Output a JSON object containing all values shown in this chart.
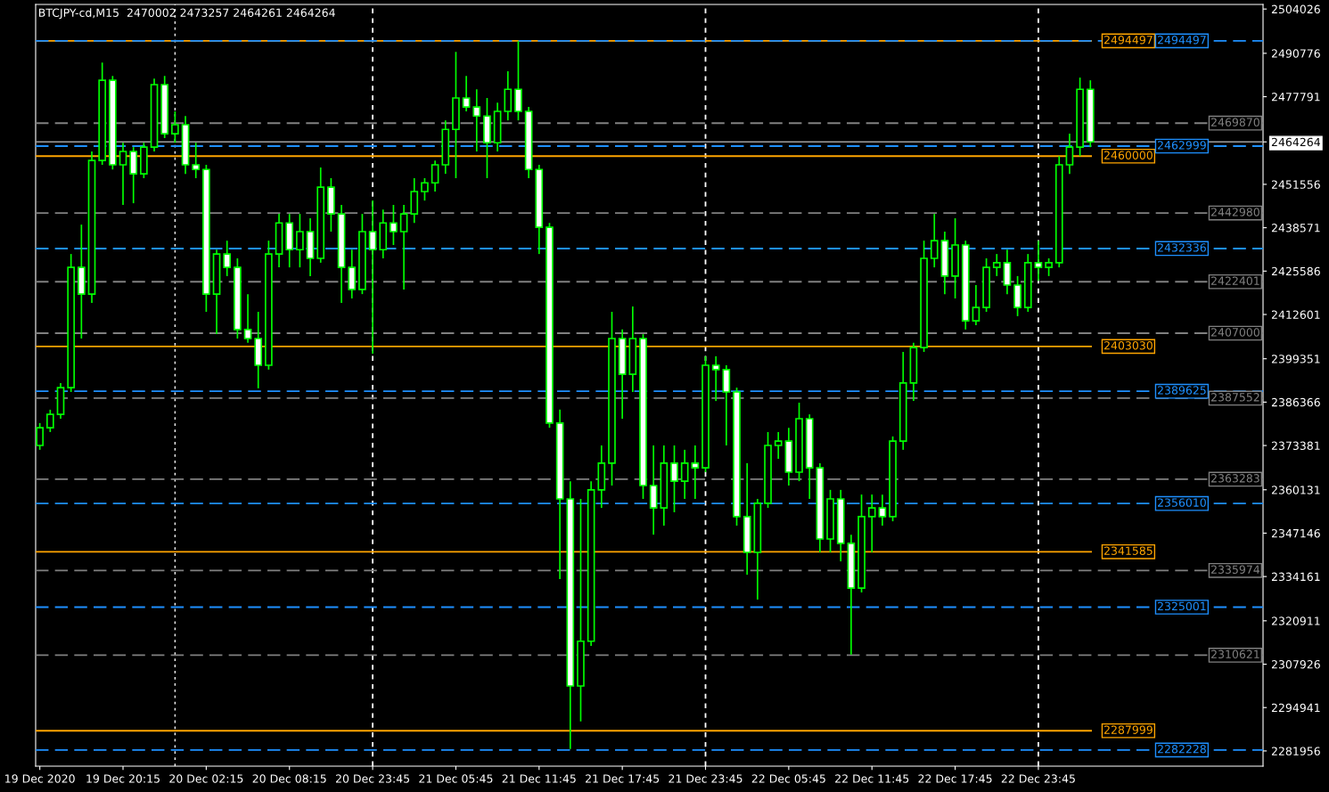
{
  "chart_data": {
    "type": "candlestick",
    "title": "BTCJPY-cd,M15  2470002 2473257 2464261 2464264",
    "categories": [
      "19 Dec 2020",
      null,
      null,
      null,
      null,
      null,
      null,
      null,
      "19 Dec 20:15",
      null,
      null,
      null,
      null,
      null,
      null,
      null,
      "20 Dec 02:15",
      null,
      null,
      null,
      null,
      null,
      null,
      null,
      "20 Dec 08:15",
      null,
      null,
      null,
      null,
      null,
      null,
      null,
      "20 Dec 23:45",
      null,
      null,
      null,
      null,
      null,
      null,
      null,
      "21 Dec 05:45",
      null,
      null,
      null,
      null,
      null,
      null,
      null,
      "21 Dec 11:45",
      null,
      null,
      null,
      null,
      null,
      null,
      null,
      "21 Dec 17:45",
      null,
      null,
      null,
      null,
      null,
      null,
      null,
      "21 Dec 23:45",
      null,
      null,
      null,
      null,
      null,
      null,
      null,
      "22 Dec 05:45",
      null,
      null,
      null,
      null,
      null,
      null,
      null,
      "22 Dec 11:45",
      null,
      null,
      null,
      null,
      null,
      null,
      null,
      "22 Dec 17:45",
      null,
      null,
      null,
      null,
      null,
      null,
      null,
      "22 Dec 23:45",
      null,
      null,
      null,
      null,
      null,
      null,
      null,
      null,
      null,
      null,
      null,
      null,
      null,
      null,
      null,
      null,
      null,
      null,
      null,
      null,
      null
    ],
    "series": [
      {
        "color": "#00ff00",
        "ohlc": [
          [
            2373400,
            2380100,
            2372100,
            2378700
          ],
          [
            2378700,
            2384100,
            2377400,
            2382700
          ],
          [
            2382700,
            2392100,
            2381400,
            2390700
          ],
          [
            2390700,
            2430700,
            2389400,
            2426700
          ],
          [
            2426700,
            2439500,
            2405400,
            2418700
          ],
          [
            2418700,
            2461400,
            2416100,
            2458700
          ],
          [
            2458700,
            2488000,
            2457400,
            2482700
          ],
          [
            2482700,
            2484000,
            2456000,
            2457400
          ],
          [
            2457400,
            2464000,
            2445400,
            2461400
          ],
          [
            2461400,
            2462700,
            2445900,
            2454700
          ],
          [
            2454700,
            2464000,
            2453400,
            2462700
          ],
          [
            2462700,
            2483200,
            2461400,
            2481400
          ],
          [
            2481400,
            2484000,
            2465400,
            2466700
          ],
          [
            2466700,
            2473400,
            2464000,
            2469400
          ],
          [
            2469400,
            2472000,
            2454700,
            2457400
          ],
          [
            2457400,
            2464000,
            2453400,
            2456000
          ],
          [
            2456000,
            2457400,
            2413400,
            2418700
          ],
          [
            2418700,
            2432000,
            2406700,
            2430700
          ],
          [
            2430700,
            2434700,
            2424100,
            2426700
          ],
          [
            2426700,
            2429400,
            2405400,
            2408100
          ],
          [
            2408100,
            2418700,
            2404100,
            2405400
          ],
          [
            2405400,
            2413400,
            2390500,
            2397400
          ],
          [
            2397400,
            2434700,
            2396100,
            2430700
          ],
          [
            2430700,
            2442700,
            2426700,
            2440000
          ],
          [
            2440000,
            2442700,
            2426700,
            2432000
          ],
          [
            2432000,
            2442700,
            2426700,
            2437400
          ],
          [
            2437400,
            2441400,
            2424100,
            2429400
          ],
          [
            2429400,
            2456600,
            2428100,
            2450700
          ],
          [
            2450700,
            2453400,
            2437400,
            2442700
          ],
          [
            2442700,
            2445400,
            2416100,
            2426700
          ],
          [
            2426700,
            2432000,
            2417400,
            2420100
          ],
          [
            2420100,
            2442700,
            2418700,
            2437400
          ],
          [
            2437400,
            2446700,
            2400900,
            2432000
          ],
          [
            2432000,
            2444000,
            2429400,
            2440000
          ],
          [
            2440000,
            2445400,
            2433400,
            2437400
          ],
          [
            2437400,
            2445400,
            2420100,
            2442700
          ],
          [
            2442700,
            2453400,
            2440000,
            2449400
          ],
          [
            2449400,
            2453400,
            2446700,
            2452000
          ],
          [
            2452000,
            2458700,
            2449400,
            2457400
          ],
          [
            2457400,
            2470700,
            2454700,
            2468000
          ],
          [
            2468000,
            2491200,
            2453400,
            2477400
          ],
          [
            2477400,
            2484000,
            2473400,
            2474700
          ],
          [
            2474700,
            2480000,
            2461400,
            2472000
          ],
          [
            2472000,
            2477400,
            2453400,
            2464000
          ],
          [
            2464000,
            2476000,
            2461400,
            2473400
          ],
          [
            2473400,
            2485400,
            2470700,
            2480000
          ],
          [
            2480000,
            2494400,
            2470700,
            2473400
          ],
          [
            2473400,
            2474700,
            2453400,
            2456000
          ],
          [
            2456000,
            2457400,
            2430700,
            2438700
          ],
          [
            2438700,
            2440000,
            2378700,
            2380100
          ],
          [
            2380100,
            2384100,
            2333400,
            2357400
          ],
          [
            2357400,
            2362700,
            2282500,
            2301400
          ],
          [
            2301400,
            2357400,
            2290800,
            2314800
          ],
          [
            2314800,
            2362700,
            2313400,
            2360100
          ],
          [
            2360100,
            2373400,
            2354700,
            2368100
          ],
          [
            2368100,
            2413400,
            2361400,
            2405400
          ],
          [
            2405400,
            2408100,
            2381400,
            2394700
          ],
          [
            2394700,
            2415000,
            2389400,
            2405400
          ],
          [
            2405400,
            2406700,
            2357400,
            2361400
          ],
          [
            2361400,
            2373400,
            2346700,
            2354700
          ],
          [
            2354700,
            2373400,
            2349400,
            2368100
          ],
          [
            2368100,
            2373400,
            2353400,
            2362700
          ],
          [
            2362700,
            2372100,
            2357400,
            2368100
          ],
          [
            2368100,
            2373400,
            2357400,
            2366700
          ],
          [
            2366700,
            2400100,
            2365400,
            2397400
          ],
          [
            2397400,
            2400100,
            2386700,
            2396100
          ],
          [
            2396100,
            2397400,
            2373400,
            2389400
          ],
          [
            2389400,
            2390700,
            2349400,
            2352100
          ],
          [
            2352100,
            2368100,
            2334700,
            2341400
          ],
          [
            2341400,
            2357400,
            2327300,
            2356100
          ],
          [
            2356100,
            2377400,
            2354700,
            2373400
          ],
          [
            2373400,
            2377400,
            2369400,
            2374700
          ],
          [
            2374700,
            2378700,
            2361400,
            2365400
          ],
          [
            2365400,
            2386200,
            2362700,
            2381400
          ],
          [
            2381400,
            2382700,
            2357400,
            2366700
          ],
          [
            2366700,
            2368100,
            2341400,
            2345400
          ],
          [
            2345400,
            2360100,
            2341400,
            2357400
          ],
          [
            2357400,
            2360100,
            2338700,
            2344100
          ],
          [
            2344100,
            2346700,
            2310800,
            2330700
          ],
          [
            2330700,
            2358700,
            2329400,
            2352100
          ],
          [
            2352100,
            2358700,
            2341400,
            2354700
          ],
          [
            2354700,
            2358700,
            2349400,
            2352100
          ],
          [
            2352100,
            2376100,
            2350700,
            2374700
          ],
          [
            2374700,
            2401400,
            2372100,
            2392100
          ],
          [
            2392100,
            2404100,
            2386700,
            2402700
          ],
          [
            2402700,
            2434700,
            2401400,
            2429400
          ],
          [
            2429400,
            2442700,
            2426700,
            2434700
          ],
          [
            2434700,
            2437400,
            2418700,
            2424100
          ],
          [
            2424100,
            2441400,
            2417400,
            2433400
          ],
          [
            2433400,
            2434700,
            2408100,
            2410700
          ],
          [
            2410700,
            2421400,
            2409400,
            2414700
          ],
          [
            2414700,
            2429400,
            2413400,
            2426700
          ],
          [
            2426700,
            2430700,
            2424100,
            2428100
          ],
          [
            2428100,
            2432000,
            2418700,
            2421400
          ],
          [
            2421400,
            2424100,
            2412100,
            2414700
          ],
          [
            2414700,
            2430700,
            2413400,
            2428100
          ],
          [
            2428100,
            2434700,
            2422700,
            2426700
          ],
          [
            2426700,
            2429400,
            2424100,
            2428100
          ],
          [
            2428100,
            2460000,
            2426700,
            2457400
          ],
          [
            2457400,
            2466700,
            2454700,
            2462700
          ],
          [
            2462700,
            2483500,
            2460000,
            2480000
          ],
          [
            2480000,
            2482700,
            2462700,
            2464264
          ],
          null,
          null,
          null,
          null,
          null,
          null,
          null,
          null,
          null,
          null,
          null,
          null,
          null,
          null,
          null,
          null
        ]
      }
    ],
    "ylim": [
      2277400,
      2505400
    ],
    "yticks": [
      2504026,
      2490776,
      2477791,
      2464264,
      2451556,
      2438571,
      2425586,
      2412601,
      2399351,
      2386366,
      2373381,
      2360131,
      2347146,
      2334161,
      2320911,
      2307926,
      2294941,
      2281956
    ],
    "ref_lines": [
      {
        "axis": "y",
        "value": 2494497,
        "label": "2494497",
        "color": "#ffa500",
        "line_style": "solid"
      },
      {
        "axis": "y",
        "value": 2460000,
        "label": "2460000",
        "color": "#ffa500",
        "line_style": "solid"
      },
      {
        "axis": "y",
        "value": 2403030,
        "label": "2403030",
        "color": "#ffa500",
        "line_style": "solid"
      },
      {
        "axis": "y",
        "value": 2341585,
        "label": "2341585",
        "color": "#ffa500",
        "line_style": "solid"
      },
      {
        "axis": "y",
        "value": 2287999,
        "label": "2287999",
        "color": "#ffa500",
        "line_style": "solid"
      },
      {
        "axis": "y",
        "value": 2494497,
        "label": "2494497",
        "color": "#1e90ff",
        "line_style": "dashed"
      },
      {
        "axis": "y",
        "value": 2462999,
        "label": "2462999",
        "color": "#1e90ff",
        "line_style": "dashed"
      },
      {
        "axis": "y",
        "value": 2432336,
        "label": "2432336",
        "color": "#1e90ff",
        "line_style": "dashed"
      },
      {
        "axis": "y",
        "value": 2389625,
        "label": "2389625",
        "color": "#1e90ff",
        "line_style": "dashed"
      },
      {
        "axis": "y",
        "value": 2356010,
        "label": "2356010",
        "color": "#1e90ff",
        "line_style": "dashed"
      },
      {
        "axis": "y",
        "value": 2325001,
        "label": "2325001",
        "color": "#1e90ff",
        "line_style": "dashed"
      },
      {
        "axis": "y",
        "value": 2282228,
        "label": "2282228",
        "color": "#1e90ff",
        "line_style": "dashed"
      },
      {
        "axis": "y",
        "value": 2469870,
        "label": "2469870",
        "color": "#808080",
        "line_style": "dashed"
      },
      {
        "axis": "y",
        "value": 2442980,
        "label": "2442980",
        "color": "#808080",
        "line_style": "dashed"
      },
      {
        "axis": "y",
        "value": 2422401,
        "label": "2422401",
        "color": "#808080",
        "line_style": "dashed"
      },
      {
        "axis": "y",
        "value": 2407000,
        "label": "2407000",
        "color": "#808080",
        "line_style": "dashed"
      },
      {
        "axis": "y",
        "value": 2387552,
        "label": "2387552",
        "color": "#808080",
        "line_style": "dashed"
      },
      {
        "axis": "y",
        "value": 2363283,
        "label": "2363283",
        "color": "#808080",
        "line_style": "dashed"
      },
      {
        "axis": "y",
        "value": 2335974,
        "label": "2335974",
        "color": "#808080",
        "line_style": "dashed"
      },
      {
        "axis": "y",
        "value": 2310621,
        "label": "2310621",
        "color": "#808080",
        "line_style": "dashed"
      },
      {
        "axis": "y",
        "value": 2464264,
        "color": "#a0a0a0",
        "line_style": "solid"
      },
      {
        "axis": "x",
        "value": "20 Dec 23:45",
        "color": "#ffffff",
        "line_style": "dotted"
      },
      {
        "axis": "x",
        "value": "21 Dec 23:45",
        "color": "#ffffff",
        "line_style": "dotted"
      },
      {
        "axis": "x",
        "value": "22 Dec 23:45",
        "color": "#ffffff",
        "line_style": "dotted"
      }
    ],
    "grid": false,
    "legend": false
  }
}
